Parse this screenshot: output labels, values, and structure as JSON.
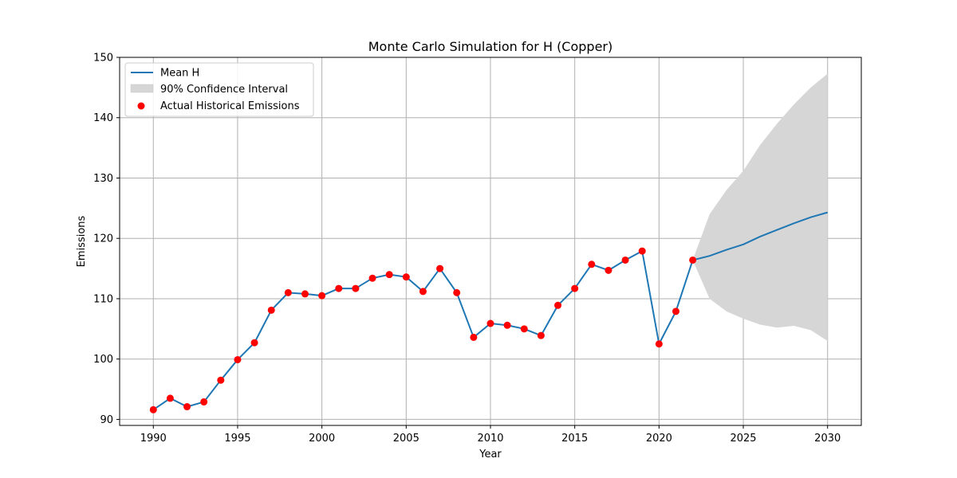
{
  "chart_data": {
    "type": "line",
    "title": "Monte Carlo Simulation for H (Copper)",
    "xlabel": "Year",
    "ylabel": "Emissions",
    "xlim": [
      1988,
      2032
    ],
    "ylim": [
      89,
      150
    ],
    "xticks": [
      1990,
      1995,
      2000,
      2005,
      2010,
      2015,
      2020,
      2025,
      2030
    ],
    "yticks": [
      90,
      100,
      110,
      120,
      130,
      140,
      150
    ],
    "grid": true,
    "legend_position": "top-left",
    "legend": [
      "Mean H",
      "90% Confidence Interval",
      "Actual Historical Emissions"
    ],
    "colors": {
      "mean_line": "#1f77b4",
      "ci_fill": "#d6d6d6",
      "actual_points": "#ff0000",
      "grid": "#b0b0b0"
    },
    "historical": {
      "name": "Actual Historical Emissions",
      "x": [
        1990,
        1991,
        1992,
        1993,
        1994,
        1995,
        1996,
        1997,
        1998,
        1999,
        2000,
        2001,
        2002,
        2003,
        2004,
        2005,
        2006,
        2007,
        2008,
        2009,
        2010,
        2011,
        2012,
        2013,
        2014,
        2015,
        2016,
        2017,
        2018,
        2019,
        2020,
        2021,
        2022
      ],
      "y": [
        91.6,
        93.5,
        92.1,
        92.9,
        96.5,
        99.9,
        102.7,
        108.1,
        111.0,
        110.8,
        110.5,
        111.7,
        111.7,
        113.4,
        114.0,
        113.6,
        111.2,
        115.0,
        111.0,
        103.6,
        105.9,
        105.6,
        105.0,
        103.9,
        108.9,
        111.7,
        115.7,
        114.7,
        116.4,
        117.9,
        102.5,
        107.9,
        116.4
      ]
    },
    "mean": {
      "name": "Mean H",
      "x": [
        1990,
        1991,
        1992,
        1993,
        1994,
        1995,
        1996,
        1997,
        1998,
        1999,
        2000,
        2001,
        2002,
        2003,
        2004,
        2005,
        2006,
        2007,
        2008,
        2009,
        2010,
        2011,
        2012,
        2013,
        2014,
        2015,
        2016,
        2017,
        2018,
        2019,
        2020,
        2021,
        2022,
        2023,
        2024,
        2025,
        2026,
        2027,
        2028,
        2029,
        2030
      ],
      "y": [
        91.6,
        93.5,
        92.1,
        92.9,
        96.5,
        99.9,
        102.7,
        108.1,
        111.0,
        110.8,
        110.5,
        111.7,
        111.7,
        113.4,
        114.0,
        113.6,
        111.2,
        115.0,
        111.0,
        103.6,
        105.9,
        105.6,
        105.0,
        103.9,
        108.9,
        111.7,
        115.7,
        114.7,
        116.4,
        117.9,
        102.5,
        107.9,
        116.4,
        117.1,
        118.1,
        119.0,
        120.3,
        121.4,
        122.5,
        123.5,
        124.3
      ]
    },
    "confidence_interval": {
      "name": "90% Confidence Interval",
      "x": [
        2022,
        2023,
        2024,
        2025,
        2026,
        2027,
        2028,
        2029,
        2030
      ],
      "lower": [
        116.4,
        110.0,
        107.9,
        106.7,
        105.7,
        105.2,
        105.5,
        104.8,
        103.0
      ],
      "upper": [
        116.4,
        124.0,
        128.0,
        131.2,
        135.5,
        139.0,
        142.2,
        145.0,
        147.3
      ]
    }
  }
}
